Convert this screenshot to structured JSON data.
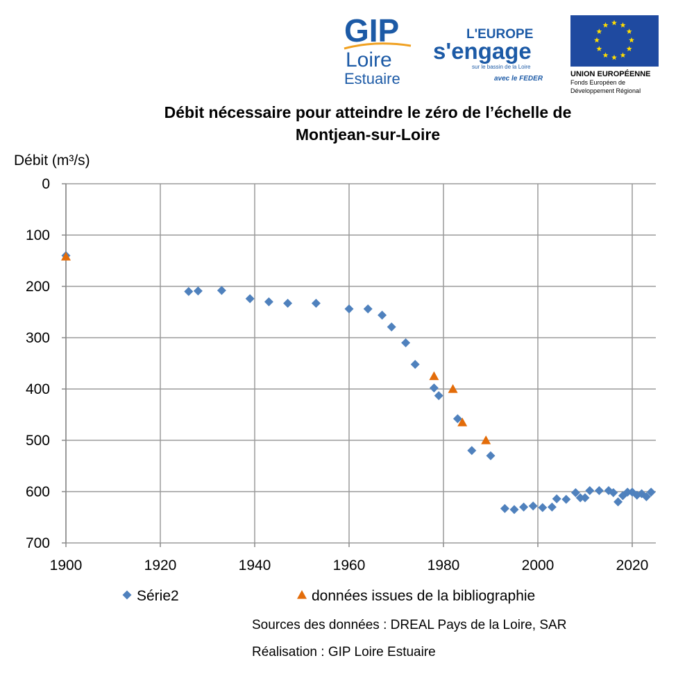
{
  "logos": {
    "gip": {
      "line1": "GIP",
      "line2": "Loire",
      "line3": "Estuaire"
    },
    "europe": {
      "line1": "L'EUROPE",
      "line2": "s'engage",
      "line3": "sur le bassin de la Loire",
      "line4": "avec le FEDER"
    },
    "ue": {
      "line1": "UNION EUROPÉENNE",
      "line2": "Fonds Européen de",
      "line3": "Développement Régional",
      "flag_color": "#1f4aa0",
      "star_color": "#ffdd00"
    }
  },
  "credits": {
    "sources": "Sources des données : DREAL Pays de la Loire, SAR",
    "realisation": "Réalisation : GIP Loire Estuaire"
  },
  "chart_data": {
    "type": "scatter",
    "title_line1": "Débit nécessaire pour atteindre le zéro de l’échelle de",
    "title_line2": "Montjean-sur-Loire",
    "ylabel": "Débit (m³/s)",
    "xlabel": "",
    "xlim": [
      1900,
      2025
    ],
    "ylim": [
      0,
      700
    ],
    "y_inverted": true,
    "x_ticks": [
      1900,
      1920,
      1940,
      1960,
      1980,
      2000,
      2020
    ],
    "y_ticks": [
      0,
      100,
      200,
      300,
      400,
      500,
      600,
      700
    ],
    "grid": true,
    "legend_position": "bottom",
    "series": [
      {
        "name": "Série2",
        "marker": "diamond",
        "color": "#4f81bd",
        "points": [
          [
            1900,
            140
          ],
          [
            1926,
            210
          ],
          [
            1928,
            209
          ],
          [
            1933,
            208
          ],
          [
            1939,
            224
          ],
          [
            1943,
            230
          ],
          [
            1947,
            233
          ],
          [
            1953,
            233
          ],
          [
            1960,
            244
          ],
          [
            1964,
            244
          ],
          [
            1967,
            256
          ],
          [
            1969,
            279
          ],
          [
            1972,
            310
          ],
          [
            1974,
            352
          ],
          [
            1978,
            398
          ],
          [
            1979,
            413
          ],
          [
            1983,
            458
          ],
          [
            1986,
            520
          ],
          [
            1990,
            530
          ],
          [
            1993,
            633
          ],
          [
            1995,
            635
          ],
          [
            1997,
            630
          ],
          [
            1999,
            628
          ],
          [
            2001,
            631
          ],
          [
            2003,
            630
          ],
          [
            2004,
            614
          ],
          [
            2006,
            615
          ],
          [
            2008,
            602
          ],
          [
            2009,
            612
          ],
          [
            2010,
            612
          ],
          [
            2011,
            598
          ],
          [
            2013,
            598
          ],
          [
            2015,
            598
          ],
          [
            2016,
            602
          ],
          [
            2017,
            620
          ],
          [
            2018,
            608
          ],
          [
            2019,
            601
          ],
          [
            2020,
            601
          ],
          [
            2021,
            607
          ],
          [
            2022,
            604
          ],
          [
            2023,
            610
          ],
          [
            2024,
            601
          ]
        ]
      },
      {
        "name": "données issues de la bibliographie",
        "marker": "triangle",
        "color": "#e36c09",
        "points": [
          [
            1900,
            142
          ],
          [
            1978,
            375
          ],
          [
            1982,
            400
          ],
          [
            1984,
            465
          ],
          [
            1989,
            500
          ]
        ]
      }
    ]
  }
}
